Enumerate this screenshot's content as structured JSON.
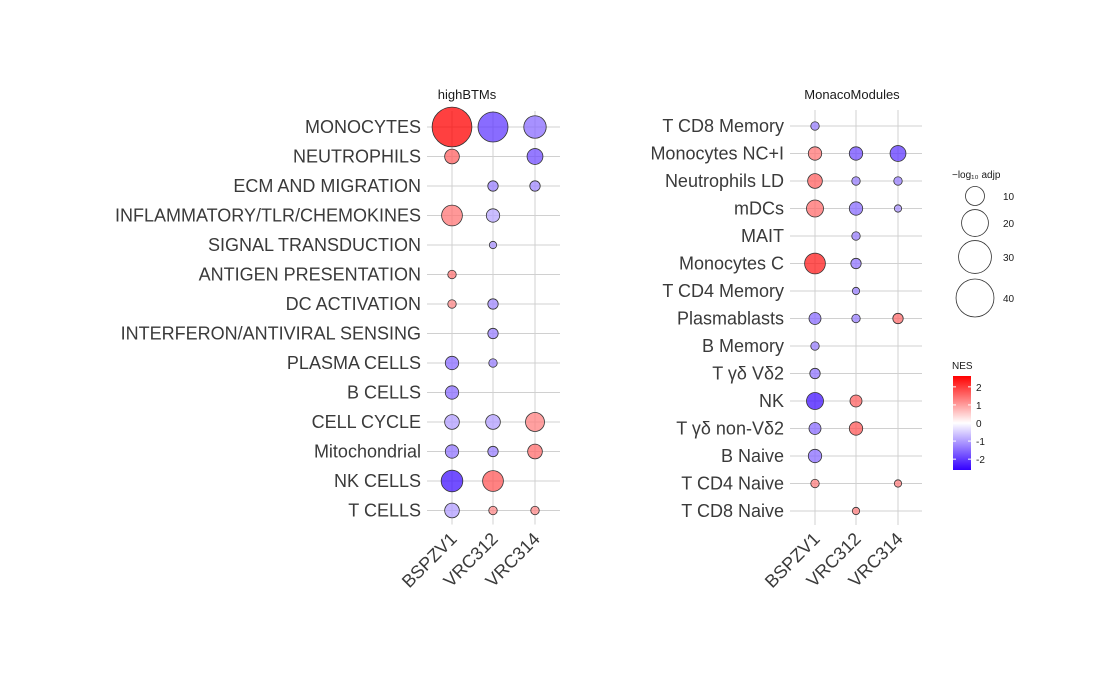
{
  "chart_data": [
    {
      "type": "scatter",
      "title": "highBTMs",
      "x_categories": [
        "BSPZV1",
        "VRC312",
        "VRC314"
      ],
      "y_categories": [
        "MONOCYTES",
        "NEUTROPHILS",
        "ECM AND MIGRATION",
        "INFLAMMATORY/TLR/CHEMOKINES",
        "SIGNAL TRANSDUCTION",
        "ANTIGEN PRESENTATION",
        "DC ACTIVATION",
        "INTERFERON/ANTIVIRAL SENSING",
        "PLASMA CELLS",
        "B CELLS",
        "CELL CYCLE",
        "Mitochondrial",
        "NK CELLS",
        "T CELLS"
      ],
      "points": [
        {
          "x": "BSPZV1",
          "y": "MONOCYTES",
          "nes": 2.6,
          "neg_log10_adjp": 44
        },
        {
          "x": "VRC312",
          "y": "MONOCYTES",
          "nes": -2.0,
          "neg_log10_adjp": 25
        },
        {
          "x": "VRC314",
          "y": "MONOCYTES",
          "nes": -1.5,
          "neg_log10_adjp": 14
        },
        {
          "x": "BSPZV1",
          "y": "NEUTROPHILS",
          "nes": 1.6,
          "neg_log10_adjp": 6
        },
        {
          "x": "VRC314",
          "y": "NEUTROPHILS",
          "nes": -1.8,
          "neg_log10_adjp": 7
        },
        {
          "x": "VRC312",
          "y": "ECM AND MIGRATION",
          "nes": -1.3,
          "neg_log10_adjp": 3
        },
        {
          "x": "VRC314",
          "y": "ECM AND MIGRATION",
          "nes": -1.2,
          "neg_log10_adjp": 3
        },
        {
          "x": "BSPZV1",
          "y": "INFLAMMATORY/TLR/CHEMOKINES",
          "nes": 1.4,
          "neg_log10_adjp": 12
        },
        {
          "x": "VRC312",
          "y": "INFLAMMATORY/TLR/CHEMOKINES",
          "nes": -0.9,
          "neg_log10_adjp": 5
        },
        {
          "x": "VRC312",
          "y": "SIGNAL TRANSDUCTION",
          "nes": -1.1,
          "neg_log10_adjp": 1.5
        },
        {
          "x": "BSPZV1",
          "y": "ANTIGEN PRESENTATION",
          "nes": 1.4,
          "neg_log10_adjp": 2
        },
        {
          "x": "BSPZV1",
          "y": "DC ACTIVATION",
          "nes": 1.2,
          "neg_log10_adjp": 2
        },
        {
          "x": "VRC312",
          "y": "DC ACTIVATION",
          "nes": -1.2,
          "neg_log10_adjp": 3
        },
        {
          "x": "VRC312",
          "y": "INTERFERON/ANTIVIRAL SENSING",
          "nes": -1.3,
          "neg_log10_adjp": 3
        },
        {
          "x": "BSPZV1",
          "y": "PLASMA CELLS",
          "nes": -1.5,
          "neg_log10_adjp": 5
        },
        {
          "x": "VRC312",
          "y": "PLASMA CELLS",
          "nes": -1.3,
          "neg_log10_adjp": 2
        },
        {
          "x": "BSPZV1",
          "y": "B CELLS",
          "nes": -1.5,
          "neg_log10_adjp": 5
        },
        {
          "x": "BSPZV1",
          "y": "CELL CYCLE",
          "nes": -1.0,
          "neg_log10_adjp": 6
        },
        {
          "x": "VRC312",
          "y": "CELL CYCLE",
          "nes": -1.0,
          "neg_log10_adjp": 6
        },
        {
          "x": "VRC314",
          "y": "CELL CYCLE",
          "nes": 1.3,
          "neg_log10_adjp": 10
        },
        {
          "x": "BSPZV1",
          "y": "Mitochondrial",
          "nes": -1.4,
          "neg_log10_adjp": 5
        },
        {
          "x": "VRC312",
          "y": "Mitochondrial",
          "nes": -1.3,
          "neg_log10_adjp": 3
        },
        {
          "x": "VRC314",
          "y": "Mitochondrial",
          "nes": 1.5,
          "neg_log10_adjp": 6
        },
        {
          "x": "BSPZV1",
          "y": "NK CELLS",
          "nes": -2.4,
          "neg_log10_adjp": 13
        },
        {
          "x": "VRC312",
          "y": "NK CELLS",
          "nes": 1.7,
          "neg_log10_adjp": 12
        },
        {
          "x": "BSPZV1",
          "y": "T CELLS",
          "nes": -1.0,
          "neg_log10_adjp": 6
        },
        {
          "x": "VRC312",
          "y": "T CELLS",
          "nes": 1.2,
          "neg_log10_adjp": 2
        },
        {
          "x": "VRC314",
          "y": "T CELLS",
          "nes": 1.2,
          "neg_log10_adjp": 2
        }
      ]
    },
    {
      "type": "scatter",
      "title": "MonacoModules",
      "x_categories": [
        "BSPZV1",
        "VRC312",
        "VRC314"
      ],
      "y_categories": [
        "T CD8 Memory",
        "Monocytes NC+I",
        "Neutrophils LD",
        "mDCs",
        "MAIT",
        "Monocytes C",
        "T CD4 Memory",
        "Plasmablasts",
        "B Memory",
        "T γδ Vδ2",
        "NK",
        "T γδ non-Vδ2",
        "B Naive",
        "T CD4 Naive",
        "T CD8 Naive"
      ],
      "points": [
        {
          "x": "BSPZV1",
          "y": "T CD8 Memory",
          "nes": -1.3,
          "neg_log10_adjp": 2
        },
        {
          "x": "BSPZV1",
          "y": "Monocytes NC+I",
          "nes": 1.4,
          "neg_log10_adjp": 5
        },
        {
          "x": "VRC312",
          "y": "Monocytes NC+I",
          "nes": -1.8,
          "neg_log10_adjp": 5
        },
        {
          "x": "VRC314",
          "y": "Monocytes NC+I",
          "nes": -2.0,
          "neg_log10_adjp": 7
        },
        {
          "x": "BSPZV1",
          "y": "Neutrophils LD",
          "nes": 1.6,
          "neg_log10_adjp": 6
        },
        {
          "x": "VRC312",
          "y": "Neutrophils LD",
          "nes": -1.3,
          "neg_log10_adjp": 2
        },
        {
          "x": "VRC314",
          "y": "Neutrophils LD",
          "nes": -1.3,
          "neg_log10_adjp": 2
        },
        {
          "x": "BSPZV1",
          "y": "mDCs",
          "nes": 1.5,
          "neg_log10_adjp": 8
        },
        {
          "x": "VRC312",
          "y": "mDCs",
          "nes": -1.5,
          "neg_log10_adjp": 5
        },
        {
          "x": "VRC314",
          "y": "mDCs",
          "nes": -1.1,
          "neg_log10_adjp": 1.5
        },
        {
          "x": "VRC312",
          "y": "MAIT",
          "nes": -1.3,
          "neg_log10_adjp": 2
        },
        {
          "x": "BSPZV1",
          "y": "Monocytes C",
          "nes": 2.3,
          "neg_log10_adjp": 12
        },
        {
          "x": "VRC312",
          "y": "Monocytes C",
          "nes": -1.4,
          "neg_log10_adjp": 3
        },
        {
          "x": "VRC312",
          "y": "T CD4 Memory",
          "nes": -1.3,
          "neg_log10_adjp": 1.5
        },
        {
          "x": "BSPZV1",
          "y": "Plasmablasts",
          "nes": -1.5,
          "neg_log10_adjp": 4
        },
        {
          "x": "VRC312",
          "y": "Plasmablasts",
          "nes": -1.3,
          "neg_log10_adjp": 2
        },
        {
          "x": "VRC314",
          "y": "Plasmablasts",
          "nes": 1.5,
          "neg_log10_adjp": 3
        },
        {
          "x": "BSPZV1",
          "y": "B Memory",
          "nes": -1.3,
          "neg_log10_adjp": 2
        },
        {
          "x": "BSPZV1",
          "y": "T γδ Vδ2",
          "nes": -1.4,
          "neg_log10_adjp": 3
        },
        {
          "x": "BSPZV1",
          "y": "NK",
          "nes": -2.4,
          "neg_log10_adjp": 8
        },
        {
          "x": "VRC312",
          "y": "NK",
          "nes": 1.6,
          "neg_log10_adjp": 4
        },
        {
          "x": "BSPZV1",
          "y": "T γδ non-Vδ2",
          "nes": -1.5,
          "neg_log10_adjp": 4
        },
        {
          "x": "VRC312",
          "y": "T γδ non-Vδ2",
          "nes": 1.7,
          "neg_log10_adjp": 5
        },
        {
          "x": "BSPZV1",
          "y": "B Naive",
          "nes": -1.5,
          "neg_log10_adjp": 5
        },
        {
          "x": "BSPZV1",
          "y": "T CD4 Naive",
          "nes": 1.3,
          "neg_log10_adjp": 2
        },
        {
          "x": "VRC314",
          "y": "T CD4 Naive",
          "nes": 1.3,
          "neg_log10_adjp": 1.5
        },
        {
          "x": "VRC312",
          "y": "T CD8 Naive",
          "nes": 1.3,
          "neg_log10_adjp": 1.5
        }
      ]
    }
  ],
  "legend_size": {
    "title": "−log₁₀ adjp",
    "values": [
      10,
      20,
      30,
      40
    ]
  },
  "legend_color": {
    "title": "NES",
    "ticks": [
      2,
      1,
      0,
      -1,
      -2
    ],
    "tick_labels": [
      "2",
      "1",
      "0",
      "-1",
      "-2"
    ],
    "range": [
      -2.6,
      2.6
    ],
    "colors": {
      "low": "#3300ff",
      "mid": "#ffffff",
      "high": "#ff0000"
    }
  }
}
